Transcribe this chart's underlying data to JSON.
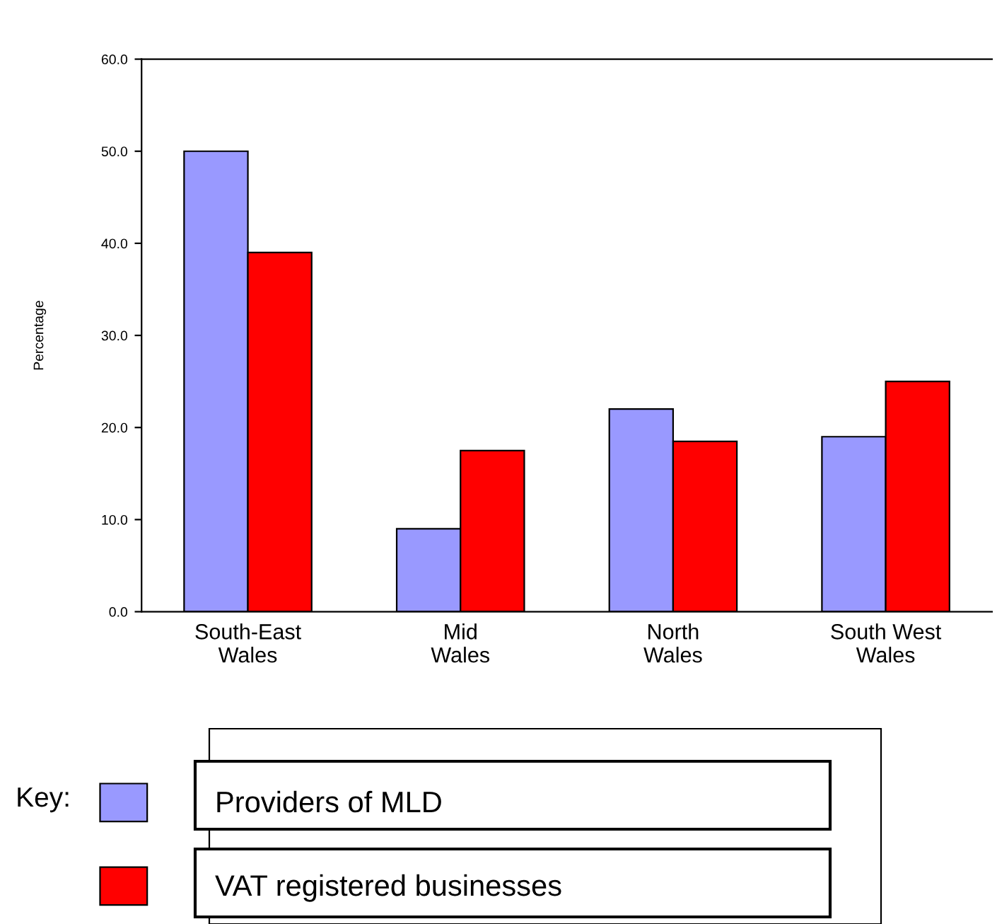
{
  "chart_data": {
    "type": "bar",
    "ylabel": "Percentage",
    "legend_title": "Key:",
    "categories": [
      "South-East\nWales",
      "Mid\nWales",
      "North\nWales",
      "South West\nWales"
    ],
    "series": [
      {
        "name": "Providers of MLD",
        "color": "#9999ff",
        "values": [
          50.0,
          9.0,
          22.0,
          19.0
        ]
      },
      {
        "name": "VAT registered businesses",
        "color": "#ff0000",
        "values": [
          39.0,
          17.5,
          18.5,
          25.0
        ]
      }
    ],
    "ylim": [
      0,
      60
    ],
    "yticks": [
      {
        "value": 0,
        "label": "0.0"
      },
      {
        "value": 10,
        "label": "10.0"
      },
      {
        "value": 20,
        "label": "20.0"
      },
      {
        "value": 30,
        "label": "30.0"
      },
      {
        "value": 40,
        "label": "40.0"
      },
      {
        "value": 50,
        "label": "50.0"
      },
      {
        "value": 60,
        "label": "60.0"
      }
    ],
    "grid": false,
    "legend": "bottom"
  }
}
